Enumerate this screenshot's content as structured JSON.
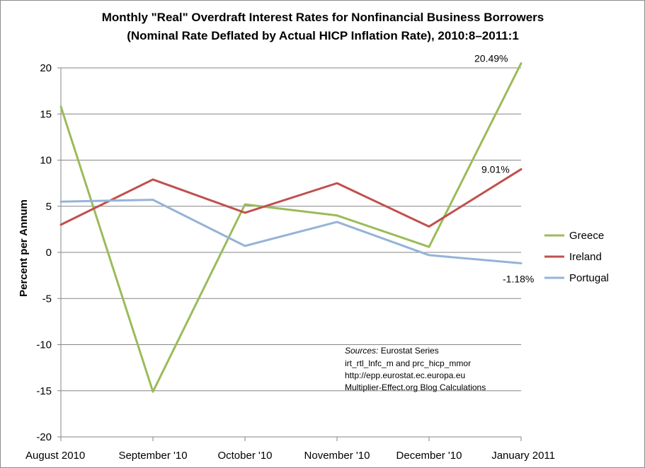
{
  "chart_data": {
    "type": "line",
    "title_lines": [
      "Monthly \"Real\" Overdraft Interest Rates for Nonfinancial Business Borrowers",
      "(Nominal Rate Deflated by Actual HICP Inflation Rate), 2010:8–2011:1"
    ],
    "ylabel": "Percent per Annum",
    "xlabel": "",
    "ylim": [
      -20,
      20
    ],
    "ytick_step": 5,
    "grid": true,
    "legend_position": "right",
    "categories": [
      "August 2010",
      "September '10",
      "October '10",
      "November '10",
      "December '10",
      "January 2011"
    ],
    "series": [
      {
        "name": "Greece",
        "color": "#9bbb59",
        "values": [
          15.8,
          -15.1,
          5.2,
          4.0,
          0.6,
          20.49
        ]
      },
      {
        "name": "Ireland",
        "color": "#c0504d",
        "values": [
          3.0,
          7.9,
          4.3,
          7.5,
          2.8,
          9.01
        ]
      },
      {
        "name": "Portugal",
        "color": "#95b3d7",
        "values": [
          5.5,
          5.7,
          0.7,
          3.3,
          -0.3,
          -1.18
        ]
      }
    ],
    "data_labels": [
      {
        "series": "Greece",
        "index": 5,
        "text": "20.49%"
      },
      {
        "series": "Ireland",
        "index": 5,
        "text": "9.01%"
      },
      {
        "series": "Portugal",
        "index": 5,
        "text": "-1.18%"
      }
    ],
    "sources_note": {
      "heading": "Sources:",
      "line1_rest": " Eurostat Series",
      "lines": [
        "irt_rtl_lnfc_m and prc_hicp_mmor",
        "http://epp.eurostat.ec.europa.eu",
        "Multiplier-Effect.org Blog Calculations"
      ]
    }
  }
}
